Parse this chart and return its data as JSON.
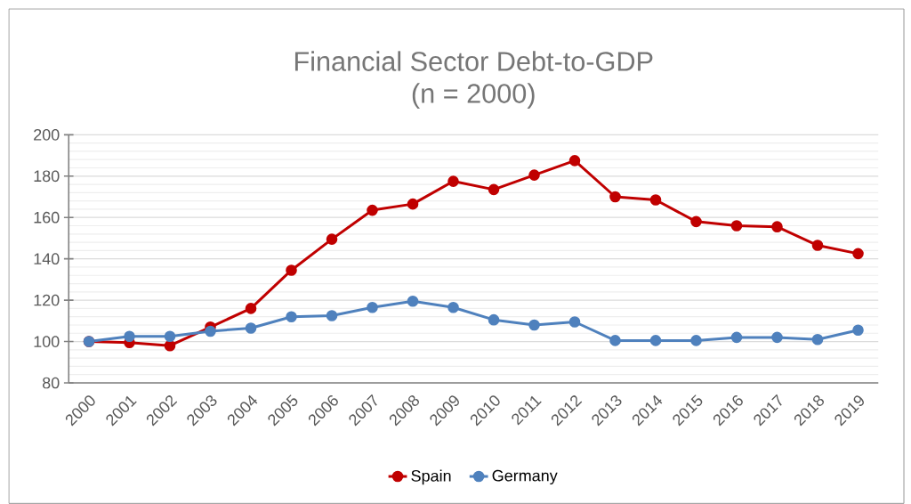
{
  "chart_data": {
    "type": "line",
    "title": "Financial Sector Debt-to-GDP",
    "subtitle": "(n = 2000)",
    "categories": [
      "2000",
      "2001",
      "2002",
      "2003",
      "2004",
      "2005",
      "2006",
      "2007",
      "2008",
      "2009",
      "2010",
      "2011",
      "2012",
      "2013",
      "2014",
      "2015",
      "2016",
      "2017",
      "2018",
      "2019"
    ],
    "series": [
      {
        "name": "Spain",
        "color": "#c00000",
        "values": [
          100,
          99.5,
          98,
          107,
          116,
          134.5,
          149.5,
          163.5,
          166.5,
          177.5,
          173.5,
          180.5,
          187.5,
          170,
          168.5,
          158,
          156,
          155.5,
          146.5,
          142.5
        ]
      },
      {
        "name": "Germany",
        "color": "#4f81bd",
        "values": [
          100,
          102.5,
          102.5,
          105,
          106.5,
          112,
          112.5,
          116.5,
          119.5,
          116.5,
          110.5,
          108,
          109.5,
          100.5,
          100.5,
          100.5,
          102,
          102,
          101,
          105.5
        ]
      }
    ],
    "ylim": [
      80,
      200
    ],
    "yticks": [
      80,
      100,
      120,
      140,
      160,
      180,
      200
    ],
    "grid": "y",
    "legend": "bottom",
    "marker": "circle",
    "line_style": "solid"
  }
}
